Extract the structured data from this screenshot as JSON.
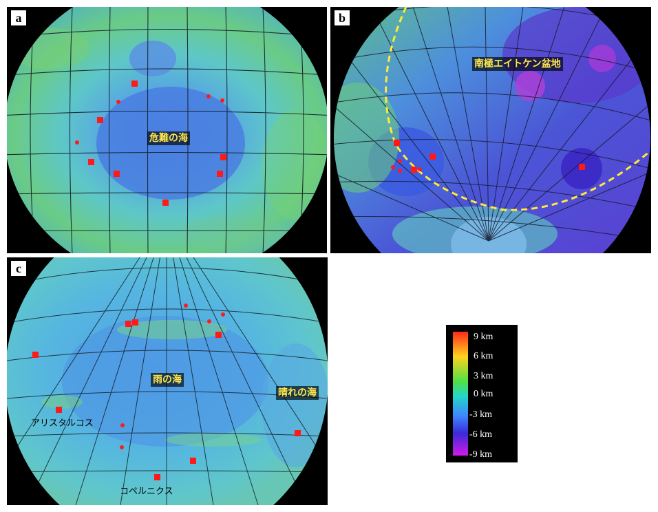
{
  "panels": {
    "a": {
      "letter": "a",
      "label": "危難の海"
    },
    "b": {
      "letter": "b",
      "label": "南極エイトケン盆地"
    },
    "c": {
      "letter": "c",
      "label_mare": "雨の海",
      "label_serenity": "晴れの海",
      "label_aristarchus": "アリスタルコス",
      "label_copernicus": "コペルニクス"
    }
  },
  "legend": {
    "labels": [
      "9 km",
      "6 km",
      "3 km",
      "0 km",
      "-3 km",
      "-6 km",
      "-9 km"
    ],
    "colors": [
      "#ff2a1a",
      "#ffd21e",
      "#52e042",
      "#22d8c8",
      "#3e86ff",
      "#3a2ad8",
      "#d21ae8"
    ]
  }
}
